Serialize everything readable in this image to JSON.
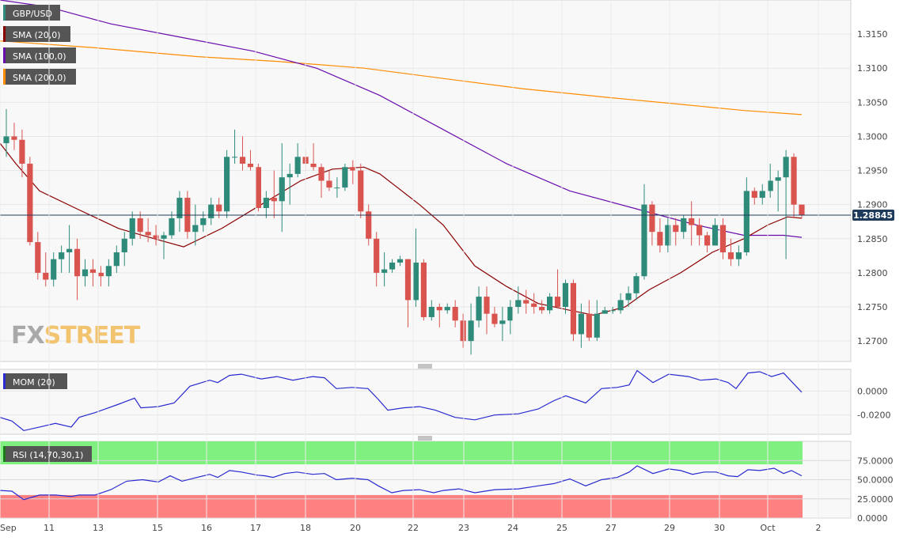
{
  "chart_data": [
    {
      "type": "candlestick",
      "symbol": "GBP/USD",
      "current_price": "1.28845",
      "price_axis": {
        "ylim": [
          1.267,
          1.32
        ],
        "ticks": [
          "1.2700",
          "1.2750",
          "1.2800",
          "1.2850",
          "1.2900",
          "1.2950",
          "1.3000",
          "1.3050",
          "1.3100",
          "1.3150"
        ]
      },
      "time_axis": {
        "labels": [
          "Sep",
          "11",
          "13",
          "15",
          "16",
          "17",
          "18",
          "20",
          "22",
          "23",
          "24",
          "25",
          "27",
          "29",
          "30",
          "Oct",
          "2"
        ]
      },
      "legend": [
        {
          "label": "GBP/USD",
          "color": "#2e8b7a"
        },
        {
          "label": "SMA (20,0)",
          "color": "#8b0000"
        },
        {
          "label": "SMA (100,0)",
          "color": "#6a0dad"
        },
        {
          "label": "SMA (200,0)",
          "color": "#ff8c00"
        }
      ],
      "candles": [
        [
          1.299,
          1.304,
          1.297,
          1.3
        ],
        [
          1.3,
          1.302,
          1.298,
          1.2995
        ],
        [
          1.2995,
          1.301,
          1.294,
          1.296
        ],
        [
          1.296,
          1.297,
          1.284,
          1.2845
        ],
        [
          1.2845,
          1.286,
          1.279,
          1.28
        ],
        [
          1.28,
          1.283,
          1.278,
          1.279
        ],
        [
          1.279,
          1.283,
          1.278,
          1.282
        ],
        [
          1.282,
          1.284,
          1.28,
          1.283
        ],
        [
          1.283,
          1.287,
          1.28,
          1.2835
        ],
        [
          1.2835,
          1.285,
          1.276,
          1.2795
        ],
        [
          1.2795,
          1.282,
          1.278,
          1.2805
        ],
        [
          1.2805,
          1.282,
          1.278,
          1.28
        ],
        [
          1.28,
          1.281,
          1.278,
          1.2795
        ],
        [
          1.2795,
          1.282,
          1.278,
          1.281
        ],
        [
          1.281,
          1.284,
          1.28,
          1.283
        ],
        [
          1.283,
          1.286,
          1.281,
          1.285
        ],
        [
          1.285,
          1.289,
          1.284,
          1.288
        ],
        [
          1.288,
          1.289,
          1.285,
          1.286
        ],
        [
          1.286,
          1.288,
          1.2845,
          1.2855
        ],
        [
          1.2855,
          1.287,
          1.284,
          1.285
        ],
        [
          1.285,
          1.286,
          1.282,
          1.2855
        ],
        [
          1.2855,
          1.289,
          1.285,
          1.288
        ],
        [
          1.288,
          1.292,
          1.286,
          1.291
        ],
        [
          1.291,
          1.292,
          1.285,
          1.286
        ],
        [
          1.286,
          1.29,
          1.284,
          1.287
        ],
        [
          1.287,
          1.289,
          1.286,
          1.288
        ],
        [
          1.288,
          1.291,
          1.287,
          1.29
        ],
        [
          1.29,
          1.291,
          1.288,
          1.289
        ],
        [
          1.289,
          1.298,
          1.288,
          1.297
        ],
        [
          1.297,
          1.301,
          1.296,
          1.297
        ],
        [
          1.297,
          1.3,
          1.295,
          1.296
        ],
        [
          1.296,
          1.298,
          1.295,
          1.2955
        ],
        [
          1.2955,
          1.296,
          1.289,
          1.2895
        ],
        [
          1.2895,
          1.292,
          1.288,
          1.291
        ],
        [
          1.291,
          1.295,
          1.288,
          1.2905
        ],
        [
          1.2905,
          1.299,
          1.286,
          1.294
        ],
        [
          1.294,
          1.296,
          1.29,
          1.2945
        ],
        [
          1.2945,
          1.299,
          1.294,
          1.297
        ],
        [
          1.297,
          1.298,
          1.295,
          1.296
        ],
        [
          1.296,
          1.299,
          1.295,
          1.2955
        ],
        [
          1.2955,
          1.296,
          1.291,
          1.2935
        ],
        [
          1.2935,
          1.295,
          1.292,
          1.2925
        ],
        [
          1.2925,
          1.294,
          1.291,
          1.2925
        ],
        [
          1.2925,
          1.296,
          1.292,
          1.2955
        ],
        [
          1.2955,
          1.2965,
          1.293,
          1.295
        ],
        [
          1.295,
          1.296,
          1.288,
          1.289
        ],
        [
          1.289,
          1.29,
          1.284,
          1.285
        ],
        [
          1.285,
          1.286,
          1.278,
          1.28
        ],
        [
          1.28,
          1.283,
          1.278,
          1.2805
        ],
        [
          1.2805,
          1.282,
          1.28,
          1.2815
        ],
        [
          1.2815,
          1.2825,
          1.281,
          1.282
        ],
        [
          1.282,
          1.282,
          1.272,
          1.276
        ],
        [
          1.276,
          1.2865,
          1.275,
          1.2815
        ],
        [
          1.2815,
          1.282,
          1.273,
          1.2735
        ],
        [
          1.2735,
          1.276,
          1.273,
          1.275
        ],
        [
          1.275,
          1.2755,
          1.272,
          1.2745
        ],
        [
          1.2745,
          1.2755,
          1.274,
          1.275
        ],
        [
          1.275,
          1.276,
          1.272,
          1.273
        ],
        [
          1.273,
          1.274,
          1.269,
          1.27
        ],
        [
          1.27,
          1.2755,
          1.268,
          1.273
        ],
        [
          1.273,
          1.278,
          1.272,
          1.2765
        ],
        [
          1.2765,
          1.278,
          1.271,
          1.274
        ],
        [
          1.274,
          1.275,
          1.272,
          1.2725
        ],
        [
          1.2725,
          1.275,
          1.27,
          1.273
        ],
        [
          1.273,
          1.276,
          1.271,
          1.275
        ],
        [
          1.275,
          1.278,
          1.274,
          1.276
        ],
        [
          1.276,
          1.2775,
          1.274,
          1.2755
        ],
        [
          1.2755,
          1.277,
          1.274,
          1.275
        ],
        [
          1.275,
          1.276,
          1.274,
          1.2745
        ],
        [
          1.2745,
          1.277,
          1.274,
          1.2765
        ],
        [
          1.2765,
          1.2805,
          1.275,
          1.275
        ],
        [
          1.275,
          1.279,
          1.274,
          1.2785
        ],
        [
          1.2785,
          1.279,
          1.27,
          1.271
        ],
        [
          1.271,
          1.2755,
          1.269,
          1.274
        ],
        [
          1.274,
          1.276,
          1.27,
          1.2705
        ],
        [
          1.2705,
          1.276,
          1.27,
          1.274
        ],
        [
          1.274,
          1.275,
          1.274,
          1.2745
        ],
        [
          1.2745,
          1.275,
          1.274,
          1.2745
        ],
        [
          1.2745,
          1.277,
          1.274,
          1.276
        ],
        [
          1.276,
          1.278,
          1.275,
          1.277
        ],
        [
          1.277,
          1.28,
          1.276,
          1.2795
        ],
        [
          1.2795,
          1.293,
          1.279,
          1.29
        ],
        [
          1.29,
          1.2905,
          1.284,
          1.286
        ],
        [
          1.286,
          1.288,
          1.283,
          1.284
        ],
        [
          1.284,
          1.288,
          1.283,
          1.287
        ],
        [
          1.287,
          1.288,
          1.284,
          1.286
        ],
        [
          1.286,
          1.2885,
          1.285,
          1.288
        ],
        [
          1.288,
          1.2905,
          1.284,
          1.287
        ],
        [
          1.287,
          1.288,
          1.284,
          1.2855
        ],
        [
          1.2855,
          1.286,
          1.283,
          1.284
        ],
        [
          1.284,
          1.288,
          1.284,
          1.287
        ],
        [
          1.287,
          1.288,
          1.282,
          1.283
        ],
        [
          1.283,
          1.285,
          1.281,
          1.282
        ],
        [
          1.282,
          1.284,
          1.281,
          1.283
        ],
        [
          1.283,
          1.294,
          1.2825,
          1.292
        ],
        [
          1.292,
          1.2925,
          1.29,
          1.291
        ],
        [
          1.291,
          1.293,
          1.29,
          1.292
        ],
        [
          1.292,
          1.296,
          1.291,
          1.2935
        ],
        [
          1.2935,
          1.295,
          1.289,
          1.294
        ],
        [
          1.294,
          1.298,
          1.282,
          1.297
        ],
        [
          1.297,
          1.2975,
          1.288,
          1.29
        ],
        [
          1.29,
          1.29,
          1.288,
          1.2885
        ]
      ],
      "sma20": [
        [
          0,
          1.299
        ],
        [
          20,
          1.296
        ],
        [
          50,
          1.292
        ],
        [
          95,
          1.2895
        ],
        [
          150,
          1.2865
        ],
        [
          195,
          1.285
        ],
        [
          232,
          1.2838
        ],
        [
          280,
          1.2865
        ],
        [
          330,
          1.29
        ],
        [
          380,
          1.2935
        ],
        [
          420,
          1.2952
        ],
        [
          460,
          1.2955
        ],
        [
          480,
          1.2945
        ],
        [
          530,
          1.29
        ],
        [
          560,
          1.287
        ],
        [
          600,
          1.281
        ],
        [
          640,
          1.278
        ],
        [
          680,
          1.2755
        ],
        [
          720,
          1.2745
        ],
        [
          750,
          1.2738
        ],
        [
          790,
          1.275
        ],
        [
          820,
          1.2775
        ],
        [
          860,
          1.28
        ],
        [
          900,
          1.283
        ],
        [
          940,
          1.285
        ],
        [
          970,
          1.287
        ],
        [
          995,
          1.2882
        ],
        [
          1013,
          1.288
        ]
      ],
      "sma100": [
        [
          0,
          1.32
        ],
        [
          60,
          1.319
        ],
        [
          140,
          1.3165
        ],
        [
          230,
          1.3145
        ],
        [
          320,
          1.3125
        ],
        [
          400,
          1.31
        ],
        [
          480,
          1.306
        ],
        [
          560,
          1.301
        ],
        [
          640,
          1.296
        ],
        [
          720,
          1.292
        ],
        [
          800,
          1.2895
        ],
        [
          880,
          1.287
        ],
        [
          940,
          1.2855
        ],
        [
          990,
          1.2855
        ],
        [
          1013,
          1.2852
        ]
      ],
      "sma200": [
        [
          0,
          1.314
        ],
        [
          120,
          1.313
        ],
        [
          250,
          1.3117
        ],
        [
          350,
          1.311
        ],
        [
          460,
          1.31
        ],
        [
          560,
          1.3085
        ],
        [
          660,
          1.307
        ],
        [
          760,
          1.3058
        ],
        [
          860,
          1.3047
        ],
        [
          940,
          1.3038
        ],
        [
          1013,
          1.3032
        ]
      ]
    },
    {
      "type": "line",
      "title": "MOM (20)",
      "color": "#2a2ad0",
      "ylim": [
        -0.036,
        0.018
      ],
      "ticks": [
        "0.0000",
        "-0.0200"
      ],
      "points": [
        [
          0,
          -0.022
        ],
        [
          15,
          -0.025
        ],
        [
          30,
          -0.033
        ],
        [
          50,
          -0.03
        ],
        [
          70,
          -0.027
        ],
        [
          90,
          -0.03
        ],
        [
          100,
          -0.022
        ],
        [
          120,
          -0.018
        ],
        [
          150,
          -0.011
        ],
        [
          170,
          -0.006
        ],
        [
          178,
          -0.014
        ],
        [
          200,
          -0.013
        ],
        [
          220,
          -0.01
        ],
        [
          240,
          0.004
        ],
        [
          265,
          0.009
        ],
        [
          275,
          0.007
        ],
        [
          290,
          0.013
        ],
        [
          305,
          0.014
        ],
        [
          330,
          0.01
        ],
        [
          350,
          0.012
        ],
        [
          370,
          0.009
        ],
        [
          395,
          0.012
        ],
        [
          410,
          0.011
        ],
        [
          425,
          0.002
        ],
        [
          445,
          0.003
        ],
        [
          465,
          0.002
        ],
        [
          478,
          -0.007
        ],
        [
          490,
          -0.016
        ],
        [
          510,
          -0.014
        ],
        [
          530,
          -0.013
        ],
        [
          550,
          -0.016
        ],
        [
          575,
          -0.022
        ],
        [
          600,
          -0.024
        ],
        [
          625,
          -0.02
        ],
        [
          655,
          -0.019
        ],
        [
          680,
          -0.015
        ],
        [
          700,
          -0.008
        ],
        [
          715,
          -0.004
        ],
        [
          740,
          -0.01
        ],
        [
          760,
          0.002
        ],
        [
          780,
          0.003
        ],
        [
          795,
          0.005
        ],
        [
          805,
          0.017
        ],
        [
          825,
          0.007
        ],
        [
          845,
          0.014
        ],
        [
          870,
          0.012
        ],
        [
          885,
          0.009
        ],
        [
          905,
          0.01
        ],
        [
          920,
          0.007
        ],
        [
          930,
          0.002
        ],
        [
          945,
          0.015
        ],
        [
          960,
          0.016
        ],
        [
          975,
          0.012
        ],
        [
          990,
          0.015
        ],
        [
          1000,
          0.008
        ],
        [
          1013,
          -0.001
        ]
      ]
    },
    {
      "type": "line",
      "title": "RSI (14,70,30,1)",
      "color": "#2a2ad0",
      "ylim": [
        0,
        100
      ],
      "ticks": [
        "75.0000",
        "50.0000",
        "25.0000",
        "0.0000"
      ],
      "overbought": 70,
      "oversold": 30,
      "points": [
        [
          0,
          36
        ],
        [
          15,
          35
        ],
        [
          30,
          24
        ],
        [
          50,
          30
        ],
        [
          70,
          30
        ],
        [
          90,
          28
        ],
        [
          100,
          30
        ],
        [
          120,
          30
        ],
        [
          140,
          37
        ],
        [
          160,
          48
        ],
        [
          180,
          50
        ],
        [
          200,
          47
        ],
        [
          215,
          55
        ],
        [
          230,
          48
        ],
        [
          245,
          52
        ],
        [
          265,
          57
        ],
        [
          275,
          53
        ],
        [
          290,
          62
        ],
        [
          305,
          60
        ],
        [
          325,
          56
        ],
        [
          335,
          55
        ],
        [
          345,
          53
        ],
        [
          360,
          58
        ],
        [
          375,
          60
        ],
        [
          395,
          57
        ],
        [
          410,
          58
        ],
        [
          425,
          50
        ],
        [
          445,
          52
        ],
        [
          465,
          50
        ],
        [
          478,
          42
        ],
        [
          495,
          33
        ],
        [
          510,
          36
        ],
        [
          530,
          37
        ],
        [
          548,
          33
        ],
        [
          560,
          36
        ],
        [
          580,
          38
        ],
        [
          600,
          33
        ],
        [
          625,
          37
        ],
        [
          655,
          38
        ],
        [
          680,
          42
        ],
        [
          700,
          45
        ],
        [
          720,
          51
        ],
        [
          740,
          42
        ],
        [
          760,
          50
        ],
        [
          780,
          53
        ],
        [
          795,
          60
        ],
        [
          805,
          68
        ],
        [
          825,
          58
        ],
        [
          845,
          64
        ],
        [
          860,
          62
        ],
        [
          875,
          57
        ],
        [
          890,
          60
        ],
        [
          905,
          60
        ],
        [
          920,
          55
        ],
        [
          932,
          54
        ],
        [
          945,
          63
        ],
        [
          960,
          62
        ],
        [
          978,
          65
        ],
        [
          990,
          58
        ],
        [
          1000,
          62
        ],
        [
          1013,
          55
        ]
      ]
    }
  ],
  "watermark": {
    "label": "FXSTREET",
    "fx_color": "#a9a9a9",
    "street_color": "#f2c46f"
  },
  "colors": {
    "bull": "#2e8b7a",
    "bear": "#d9534f",
    "price_line": "#1f3b5c",
    "rsi_overbought_fill": "#80f080",
    "rsi_oversold_fill": "#ff8080"
  }
}
